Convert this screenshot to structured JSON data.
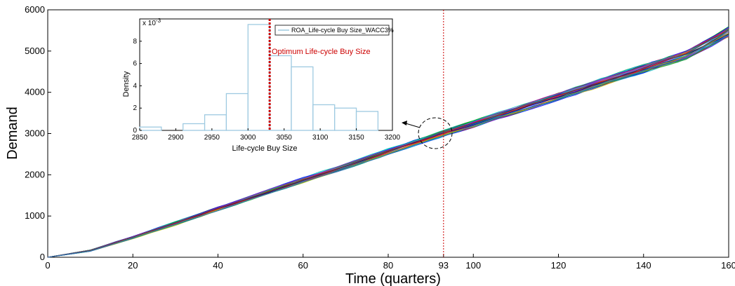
{
  "chart_data": [
    {
      "type": "line",
      "xlabel": "Time (quarters)",
      "ylabel": "Demand",
      "xlim": [
        0,
        160
      ],
      "ylim": [
        0,
        6000
      ],
      "xticks": [
        "0",
        "20",
        "40",
        "60",
        "80",
        "93",
        "100",
        "120",
        "140",
        "160"
      ],
      "yticks": [
        "0",
        "1000",
        "2000",
        "3000",
        "4000",
        "5000",
        "6000"
      ],
      "marker_x": 93,
      "series_note": "many simulated demand paths",
      "mean_path": {
        "x": [
          0,
          10,
          20,
          30,
          40,
          50,
          60,
          70,
          80,
          93,
          100,
          110,
          120,
          130,
          140,
          150,
          160
        ],
        "y": [
          0,
          160,
          480,
          820,
          1170,
          1520,
          1860,
          2200,
          2550,
          3000,
          3230,
          3560,
          3900,
          4230,
          4560,
          4900,
          5450
        ]
      },
      "path_spread": [
        0,
        15,
        25,
        35,
        40,
        45,
        50,
        55,
        60,
        65,
        70,
        75,
        80,
        85,
        95,
        100,
        110
      ],
      "path_colors": [
        "#0000ff",
        "#00aa00",
        "#ff0000",
        "#00bfbf",
        "#bf00bf",
        "#bfbf00",
        "#404040",
        "#1f6fd0",
        "#8a2be2",
        "#ff7f0e",
        "#2ca02c",
        "#d62728",
        "#17becf",
        "#9467bd",
        "#000080",
        "#008080"
      ]
    },
    {
      "type": "bar",
      "xlabel": "Life-cycle Buy Size",
      "ylabel": "Density",
      "y_exponent": "x 10",
      "y_exponent_power": "-3",
      "xlim": [
        2850,
        3200
      ],
      "ylim": [
        0,
        0.01
      ],
      "xticks": [
        "2850",
        "2900",
        "2950",
        "3000",
        "3050",
        "3100",
        "3150",
        "3200"
      ],
      "yticks": [
        "0",
        "2",
        "4",
        "6",
        "8"
      ],
      "bins": [
        {
          "start": 2830,
          "end": 2880,
          "value": 0.0003
        },
        {
          "start": 2880,
          "end": 2910,
          "value": 0.0
        },
        {
          "start": 2910,
          "end": 2940,
          "value": 0.0006
        },
        {
          "start": 2940,
          "end": 2970,
          "value": 0.0014
        },
        {
          "start": 2970,
          "end": 3000,
          "value": 0.0033
        },
        {
          "start": 3000,
          "end": 3030,
          "value": 0.0095
        },
        {
          "start": 3030,
          "end": 3060,
          "value": 0.0067
        },
        {
          "start": 3060,
          "end": 3090,
          "value": 0.0057
        },
        {
          "start": 3090,
          "end": 3120,
          "value": 0.0023
        },
        {
          "start": 3120,
          "end": 3150,
          "value": 0.002
        },
        {
          "start": 3150,
          "end": 3180,
          "value": 0.0017
        }
      ],
      "optimum_x": 3030,
      "optimum_label": "Optimum Life-cycle Buy Size",
      "legend": "ROA_Life-cycle Buy Size_WACC3%",
      "bar_color": "#9ecae1",
      "optimum_color": "#cc0000"
    }
  ]
}
